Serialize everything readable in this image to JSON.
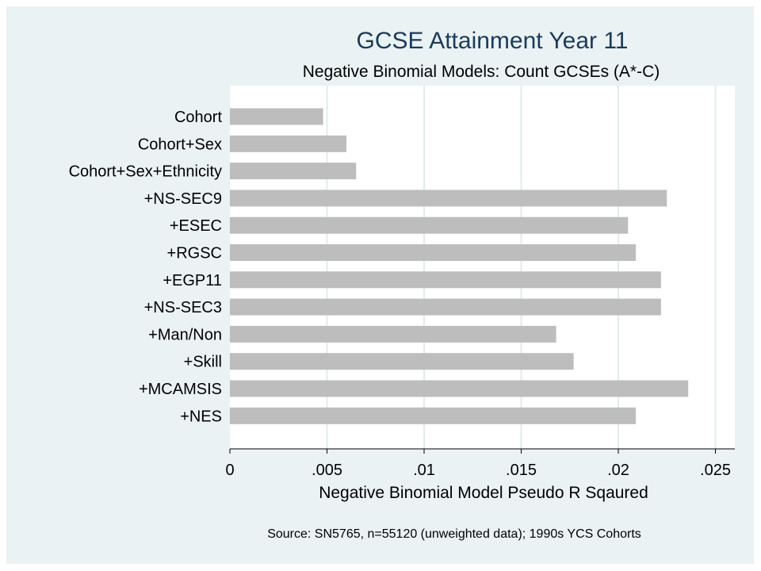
{
  "chart_data": {
    "type": "bar",
    "orientation": "horizontal",
    "title": "GCSE Attainment Year 11",
    "subtitle": "Negative Binomial Models: Count GCSEs (A*-C)",
    "xlabel": "Negative Binomial Model Pseudo R Sqaured",
    "ylabel": "",
    "note": "Source: SN5765, n=55120 (unweighted data); 1990s YCS Cohorts",
    "categories": [
      "Cohort",
      "Cohort+Sex",
      "Cohort+Sex+Ethnicity",
      "+NS-SEC9",
      "+ESEC",
      "+RGSC",
      "+EGP11",
      "+NS-SEC3",
      "+Man/Non",
      "+Skill",
      "+MCAMSIS",
      "+NES"
    ],
    "values": [
      0.0048,
      0.006,
      0.0065,
      0.0225,
      0.0205,
      0.0209,
      0.0222,
      0.0222,
      0.0168,
      0.0177,
      0.0236,
      0.0209
    ],
    "xlim": [
      0,
      0.026
    ],
    "xticks": [
      0,
      0.005,
      0.01,
      0.015,
      0.02,
      0.025
    ],
    "xtick_labels": [
      "0",
      ".005",
      ".01",
      ".015",
      ".02",
      ".025"
    ],
    "grid": "vertical",
    "legend": "none",
    "colors": {
      "bar": "#bdbdbd",
      "plot_background": "#ffffff",
      "outer_background": "#eaf2f3",
      "gridline": "#e0ecee",
      "title": "#1b3a5c"
    }
  }
}
